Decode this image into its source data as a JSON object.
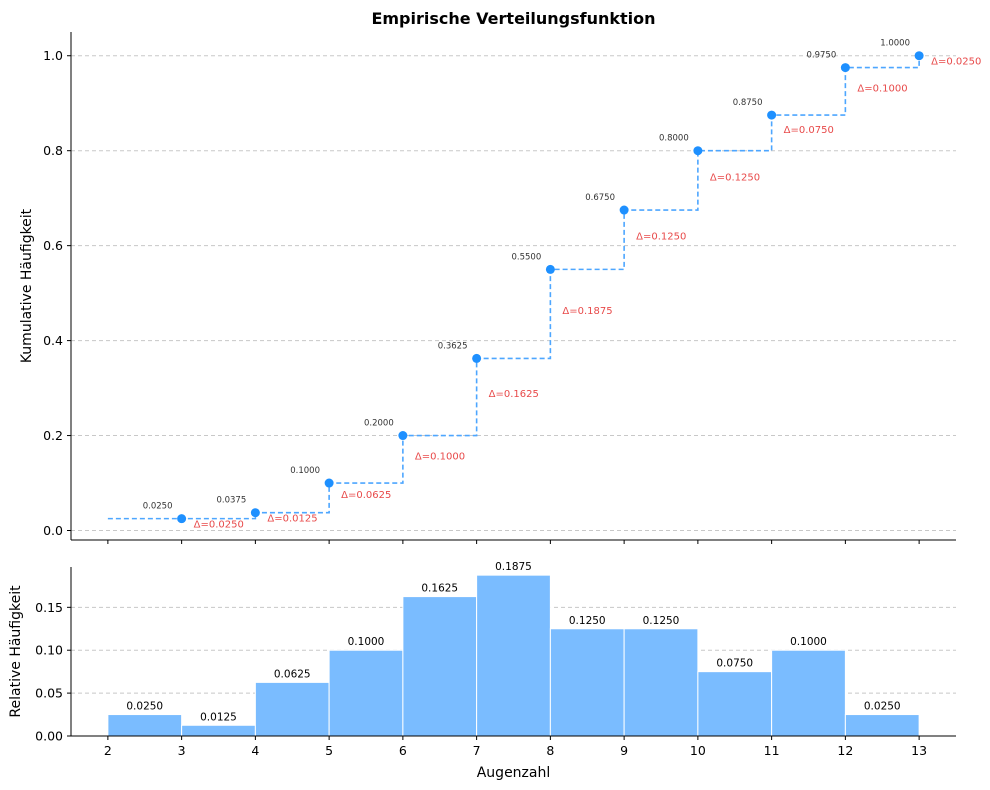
{
  "chart_data": [
    {
      "type": "line",
      "subtype": "step",
      "title": "Empirische Verteilungsfunktion",
      "ylabel": "Kumulative Häufigkeit",
      "xlabel": "",
      "xlim": [
        1.5,
        13.5
      ],
      "ylim": [
        -0.02,
        1.05
      ],
      "x_ticks": [
        2,
        3,
        4,
        5,
        6,
        7,
        8,
        9,
        10,
        11,
        12,
        13
      ],
      "y_ticks": [
        0.0,
        0.2,
        0.4,
        0.6,
        0.8,
        1.0
      ],
      "y_tick_labels": [
        "0.0",
        "0.2",
        "0.4",
        "0.6",
        "0.8",
        "1.0"
      ],
      "grid": "horizontal dashed",
      "x": [
        3,
        4,
        5,
        6,
        7,
        8,
        9,
        10,
        11,
        12,
        13
      ],
      "cumulative": [
        0.025,
        0.0375,
        0.1,
        0.2,
        0.3625,
        0.55,
        0.675,
        0.8,
        0.875,
        0.975,
        1.0
      ],
      "value_labels": [
        "0.0250",
        "0.0375",
        "0.1000",
        "0.2000",
        "0.3625",
        "0.5500",
        "0.6750",
        "0.8000",
        "0.8750",
        "0.9750",
        "1.0000"
      ],
      "delta_labels": [
        "Δ=0.0250",
        "Δ=0.0125",
        "Δ=0.0625",
        "Δ=0.1000",
        "Δ=0.1625",
        "Δ=0.1875",
        "Δ=0.1250",
        "Δ=0.1250",
        "Δ=0.0750",
        "Δ=0.1000",
        "Δ=0.0250"
      ],
      "step_start_x": 2,
      "line_color": "#4DA6FF",
      "point_color": "#1E90FF",
      "delta_color": "#E84A4A"
    },
    {
      "type": "bar",
      "ylabel": "Relative Häufigkeit",
      "xlabel": "Augenzahl",
      "xlim": [
        1.5,
        13.5
      ],
      "ylim": [
        0,
        0.197
      ],
      "x_ticks": [
        2,
        3,
        4,
        5,
        6,
        7,
        8,
        9,
        10,
        11,
        12,
        13
      ],
      "x_tick_labels": [
        "2",
        "3",
        "4",
        "5",
        "6",
        "7",
        "8",
        "9",
        "10",
        "11",
        "12",
        "13"
      ],
      "y_ticks": [
        0.0,
        0.05,
        0.1,
        0.15
      ],
      "y_tick_labels": [
        "0.00",
        "0.05",
        "0.10",
        "0.15"
      ],
      "grid": "horizontal dashed",
      "bin_edges": [
        2,
        3,
        4,
        5,
        6,
        7,
        8,
        9,
        10,
        11,
        12,
        13
      ],
      "values": [
        0.025,
        0.0125,
        0.0625,
        0.1,
        0.1625,
        0.1875,
        0.125,
        0.125,
        0.075,
        0.1,
        0.025
      ],
      "value_labels": [
        "0.0250",
        "0.0125",
        "0.0625",
        "0.1000",
        "0.1625",
        "0.1875",
        "0.1250",
        "0.1250",
        "0.0750",
        "0.1000",
        "0.0250"
      ],
      "bar_color": "#7ABCFF",
      "edge_color": "#FFFFFF"
    }
  ]
}
